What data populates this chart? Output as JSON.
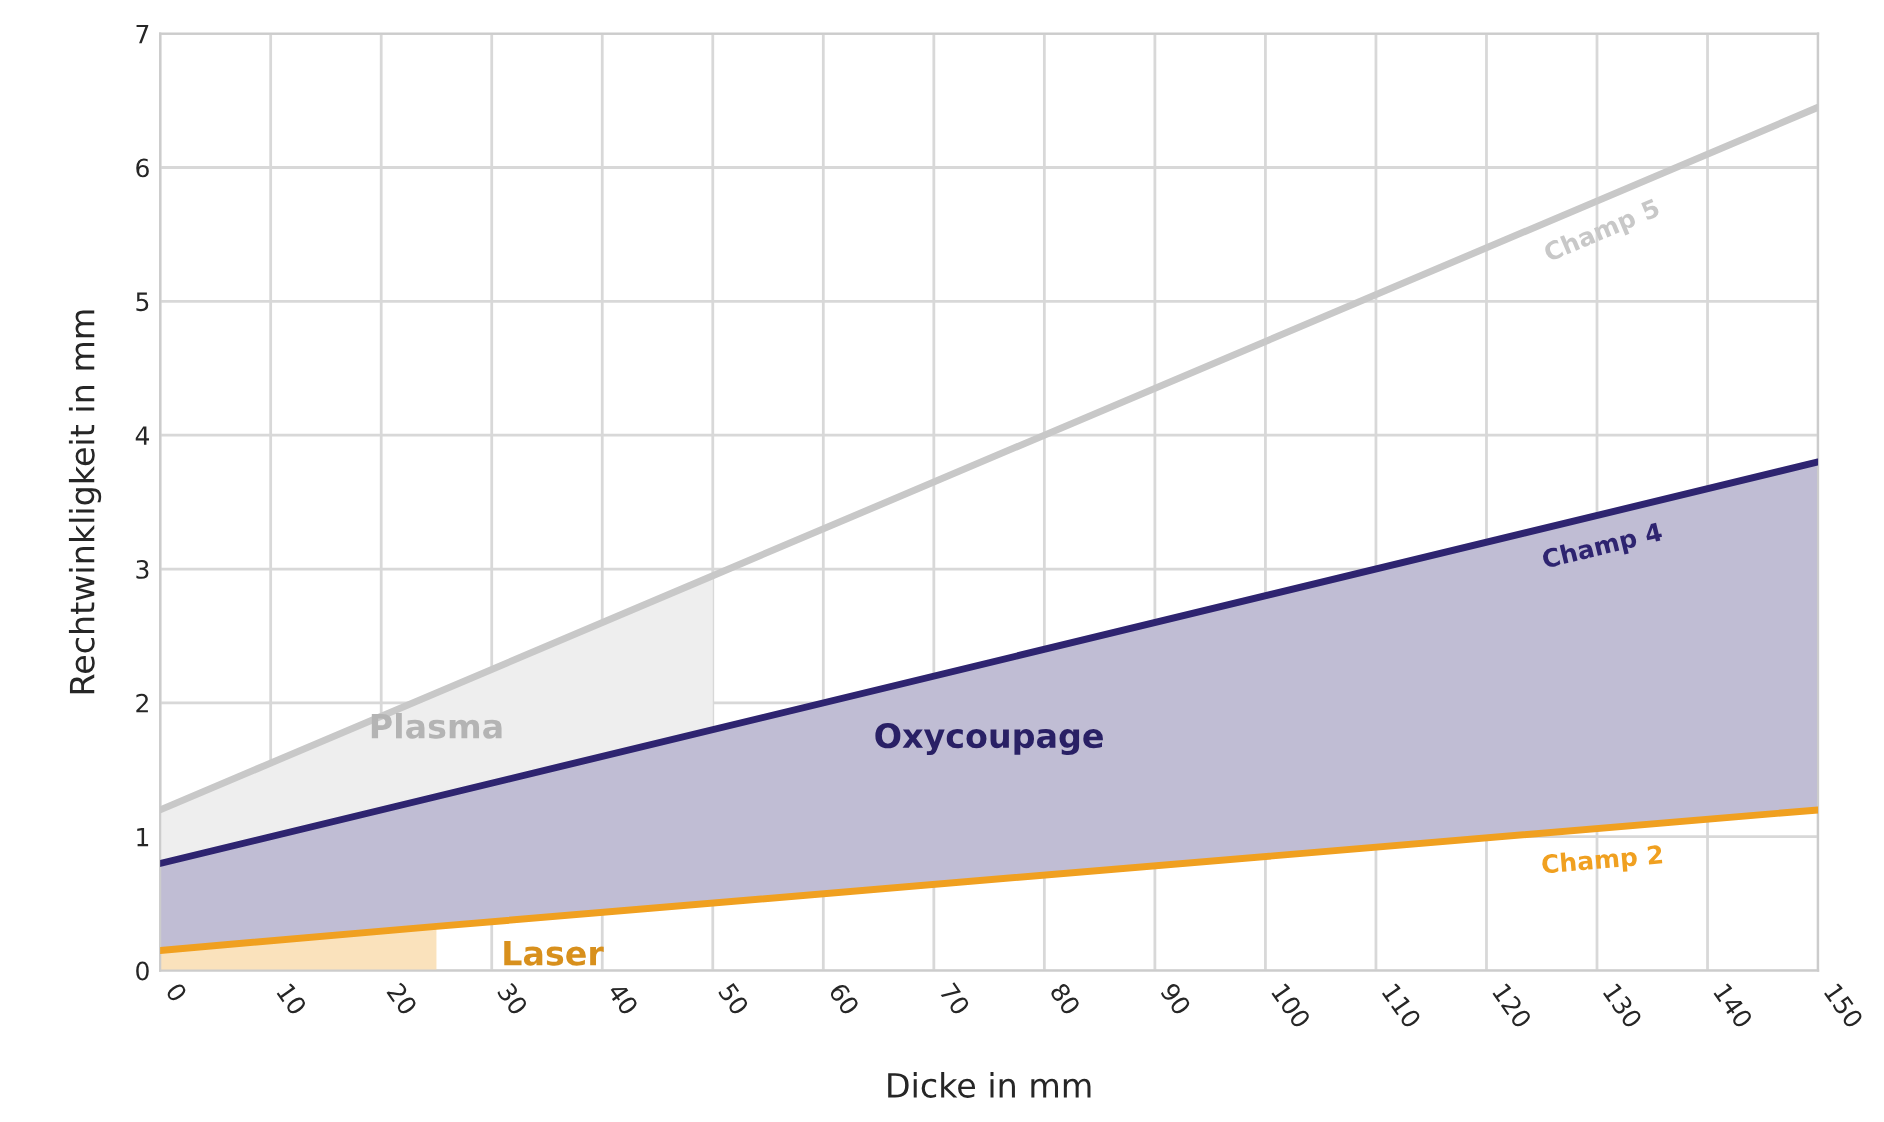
{
  "chart_data": {
    "type": "line",
    "xlabel": "Dicke in mm",
    "ylabel": "Rechtwinkligkeit in mm",
    "xlim": [
      0,
      150
    ],
    "ylim": [
      0,
      7
    ],
    "xticks": [
      0,
      10,
      20,
      30,
      40,
      50,
      60,
      70,
      80,
      90,
      100,
      110,
      120,
      130,
      140,
      150
    ],
    "yticks": [
      0,
      1,
      2,
      3,
      4,
      5,
      6,
      7
    ],
    "grid": true,
    "marker": "none",
    "line_style": "solid",
    "series": [
      {
        "name": "Champ 5",
        "color": "#c8c8c8",
        "x": [
          0,
          50,
          150
        ],
        "values": [
          1.2,
          2.95,
          6.45
        ],
        "lower": [
          0.8,
          1.8,
          null
        ],
        "upper": [
          1.2,
          2.95,
          null
        ]
      },
      {
        "name": "Champ 4",
        "color": "#2e2470",
        "x": [
          0,
          150
        ],
        "values": [
          0.8,
          3.8
        ],
        "lower": [
          0.15,
          1.2
        ],
        "upper": [
          0.8,
          3.8
        ]
      },
      {
        "name": "Champ 2",
        "color": "#f0a020",
        "x": [
          0,
          25,
          150
        ],
        "values": [
          0.15,
          0.33,
          1.2
        ],
        "lower": [
          0,
          0,
          null
        ],
        "upper": [
          0.15,
          0.33,
          null
        ]
      }
    ],
    "annotations": [
      "Plasma",
      "Oxycoupage",
      "Laser"
    ]
  }
}
